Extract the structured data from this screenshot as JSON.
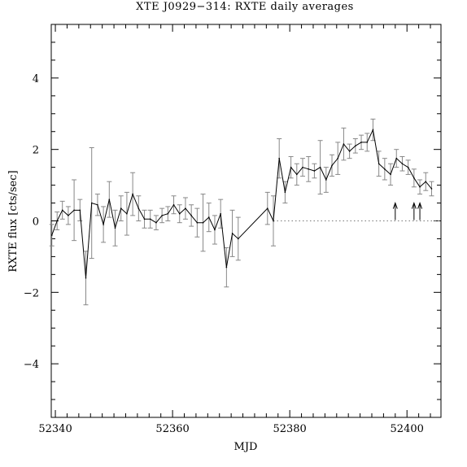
{
  "chart_data": {
    "type": "line",
    "title": "XTE J0929−314: RXTE daily averages",
    "xlabel": "MJD",
    "ylabel": "RXTE flux [cts/sec]",
    "xlim": [
      52339.3,
      52405.8
    ],
    "ylim": [
      -5.5,
      5.5
    ],
    "x_ticks": [
      52340,
      52360,
      52380,
      52400
    ],
    "x_tick_labels": [
      "52340",
      "52360",
      "52380",
      "52400"
    ],
    "y_ticks": [
      -4,
      -2,
      0,
      2,
      4
    ],
    "y_tick_labels": [
      "−4",
      "−2",
      "0",
      "2",
      "4"
    ],
    "grid": false,
    "zero_line": true,
    "series": [
      {
        "x": [
          52339.4,
          52340.3,
          52341.2,
          52342.2,
          52343.2,
          52344.2,
          52345.2,
          52346.2,
          52347.2,
          52348.2,
          52349.2,
          52350.2,
          52351.2,
          52352.2,
          52353.2,
          52354.2,
          52355.2,
          52356.2,
          52357.2,
          52358.2,
          52359.2,
          52360.2,
          52361.2,
          52362.2,
          52363.2,
          52364.2,
          52365.2,
          52366.2,
          52367.2,
          52368.2,
          52369.2,
          52370.2,
          52371.2,
          52376.2,
          52377.2,
          52378.2,
          52379.2,
          52380.2,
          52381.2,
          52382.2,
          52383.2,
          52384.2,
          52385.2,
          52386.2,
          52387.2,
          52388.2,
          52389.2,
          52390.2,
          52391.2,
          52392.2,
          52393.2,
          52394.2,
          52395.2,
          52396.2,
          52397.2,
          52398.2,
          52399.2,
          52400.2,
          52401.2,
          52402.2,
          52403.2,
          52404.2
        ],
        "y": [
          -0.4,
          0.0,
          0.3,
          0.15,
          0.3,
          0.3,
          -1.6,
          0.5,
          0.45,
          -0.1,
          0.6,
          -0.2,
          0.35,
          0.2,
          0.75,
          0.35,
          0.05,
          0.05,
          -0.05,
          0.15,
          0.2,
          0.45,
          0.2,
          0.35,
          0.15,
          -0.05,
          -0.05,
          0.1,
          -0.25,
          0.2,
          -1.3,
          -0.35,
          -0.5,
          0.35,
          0.0,
          1.75,
          0.8,
          1.5,
          1.3,
          1.5,
          1.45,
          1.4,
          1.5,
          1.15,
          1.55,
          1.75,
          2.15,
          1.95,
          2.1,
          2.2,
          2.2,
          2.55,
          1.6,
          1.45,
          1.3,
          1.75,
          1.6,
          1.5,
          1.2,
          0.95,
          1.1,
          0.9
        ],
        "err": [
          0.3,
          0.25,
          0.25,
          0.25,
          0.85,
          0.3,
          0.75,
          1.55,
          0.3,
          0.5,
          0.5,
          0.5,
          0.35,
          0.6,
          0.6,
          0.35,
          0.25,
          0.25,
          0.2,
          0.2,
          0.2,
          0.25,
          0.25,
          0.3,
          0.3,
          0.4,
          0.8,
          0.4,
          0.4,
          0.4,
          0.55,
          0.65,
          0.6,
          0.45,
          0.7,
          0.55,
          0.3,
          0.3,
          0.3,
          0.25,
          0.35,
          0.2,
          0.75,
          0.35,
          0.3,
          0.45,
          0.45,
          0.2,
          0.2,
          0.2,
          0.25,
          0.3,
          0.35,
          0.3,
          0.3,
          0.25,
          0.2,
          0.2,
          0.25,
          0.2,
          0.25,
          0.2
        ]
      }
    ],
    "arrows_x": [
      52398.0,
      52401.2,
      52402.2
    ]
  }
}
